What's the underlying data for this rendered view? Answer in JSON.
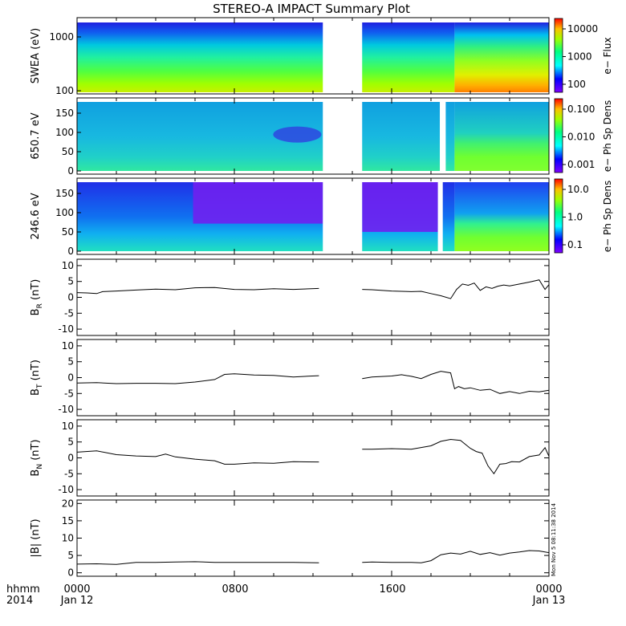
{
  "title": "STEREO-A IMPACT Summary Plot",
  "footer": {
    "left_top": "hhmm",
    "left_bottom": "2014",
    "ticks": [
      {
        "top": "0000",
        "bottom": "Jan 12"
      },
      {
        "top": "0800",
        "bottom": ""
      },
      {
        "top": "1600",
        "bottom": ""
      },
      {
        "top": "0000",
        "bottom": "Jan 13"
      }
    ]
  },
  "timestamp": "Mon Nov  5 08:11:38 2014",
  "colors": {
    "line": "#000000",
    "gap": "#ffffff",
    "colorbar_low": "#7f00ff",
    "colorbar_mid": "#00ff80",
    "colorbar_high": "#ff0000"
  },
  "chart_data": [
    {
      "type": "heatmap",
      "name": "swea",
      "ylabel": "SWEA (eV)",
      "yticks": [
        "1000",
        "100"
      ],
      "colorbar": {
        "label": "e− Flux",
        "ticks": [
          "10000",
          "1000",
          "100"
        ]
      },
      "x_range_hours": [
        0,
        24
      ],
      "data_gaps_hours": [
        [
          12.5,
          14.5
        ]
      ]
    },
    {
      "type": "heatmap",
      "name": "pad650",
      "ylabel": "650.7 eV",
      "yticks": [
        "150",
        "100",
        "50",
        "0"
      ],
      "colorbar": {
        "label": "e− Ph Sp Dens",
        "ticks": [
          "0.100",
          "0.010",
          "0.001"
        ]
      },
      "x_range_hours": [
        0,
        24
      ],
      "data_gaps_hours": [
        [
          12.5,
          14.5
        ],
        [
          18.45,
          18.75
        ]
      ]
    },
    {
      "type": "heatmap",
      "name": "pad246",
      "ylabel": "246.6 eV",
      "yticks": [
        "150",
        "100",
        "50",
        "0"
      ],
      "colorbar": {
        "label": "e− Ph Sp Dens",
        "ticks": [
          "10.0",
          "1.0",
          "0.1"
        ]
      },
      "x_range_hours": [
        0,
        24
      ],
      "data_gaps_hours": [
        [
          12.5,
          14.5
        ],
        [
          18.35,
          18.6
        ]
      ]
    },
    {
      "type": "line",
      "name": "br",
      "ylabel": "B_R (nT)",
      "ylim": [
        -12,
        12
      ],
      "yticks": [
        10,
        5,
        0,
        -5,
        -10
      ],
      "x": [
        0,
        0.5,
        1.0,
        1.3,
        2,
        3,
        4,
        5,
        6,
        7,
        8,
        9,
        10,
        11,
        12.3,
        14.5,
        15,
        16,
        17,
        17.5,
        18,
        18.5,
        19,
        19.3,
        19.6,
        19.9,
        20.2,
        20.5,
        20.8,
        21.1,
        21.4,
        21.7,
        22,
        22.5,
        23,
        23.5,
        23.8,
        24
      ],
      "y": [
        1.5,
        1.4,
        1.2,
        1.8,
        2.0,
        2.3,
        2.6,
        2.4,
        3.0,
        3.1,
        2.5,
        2.4,
        2.7,
        2.5,
        2.8,
        2.5,
        2.4,
        2.0,
        1.8,
        1.9,
        1.2,
        0.5,
        -0.4,
        2.5,
        4.2,
        3.8,
        4.5,
        2.2,
        3.3,
        2.8,
        3.5,
        3.9,
        3.6,
        4.2,
        4.8,
        5.5,
        2.5,
        4.0
      ]
    },
    {
      "type": "line",
      "name": "bt",
      "ylabel": "B_T (nT)",
      "ylim": [
        -12,
        12
      ],
      "yticks": [
        10,
        5,
        0,
        -5,
        -10
      ],
      "x": [
        0,
        1,
        2,
        3,
        4,
        5,
        6,
        7,
        7.5,
        8,
        9,
        10,
        11,
        12.3,
        14.5,
        15,
        16,
        16.5,
        17,
        17.5,
        18,
        18.5,
        19,
        19.2,
        19.4,
        19.7,
        20,
        20.5,
        21,
        21.5,
        22,
        22.5,
        23,
        23.5,
        24
      ],
      "y": [
        -1.7,
        -1.6,
        -1.9,
        -1.8,
        -1.8,
        -1.9,
        -1.4,
        -0.6,
        1.0,
        1.2,
        0.8,
        0.7,
        0.2,
        0.6,
        -0.3,
        0.2,
        0.5,
        0.9,
        0.4,
        -0.3,
        1.0,
        2.0,
        1.5,
        -3.5,
        -2.8,
        -3.5,
        -3.2,
        -4.0,
        -3.7,
        -5.0,
        -4.4,
        -5.0,
        -4.3,
        -4.5,
        -4.0
      ]
    },
    {
      "type": "line",
      "name": "bn",
      "ylabel": "B_N (nT)",
      "ylim": [
        -12,
        12
      ],
      "yticks": [
        10,
        5,
        0,
        -5,
        -10
      ],
      "x": [
        0,
        1,
        2,
        3,
        4,
        4.5,
        5,
        6,
        7,
        7.5,
        8,
        9,
        10,
        11,
        12.3,
        14.5,
        15,
        16,
        17,
        18,
        18.5,
        19,
        19.5,
        20,
        20.3,
        20.6,
        20.9,
        21.2,
        21.5,
        21.8,
        22.1,
        22.5,
        23,
        23.5,
        23.8,
        24
      ],
      "y": [
        1.8,
        2.2,
        1.0,
        0.6,
        0.4,
        1.2,
        0.3,
        -0.4,
        -0.9,
        -2.0,
        -2.0,
        -1.6,
        -1.7,
        -1.2,
        -1.3,
        2.7,
        2.7,
        2.9,
        2.7,
        3.8,
        5.2,
        5.8,
        5.5,
        3.0,
        2.0,
        1.5,
        -2.5,
        -5.0,
        -2.0,
        -1.8,
        -1.2,
        -1.3,
        0.4,
        0.9,
        3.2,
        0.5
      ]
    },
    {
      "type": "line",
      "name": "bmag",
      "ylabel": "|B| (nT)",
      "ylim": [
        -1,
        21
      ],
      "yticks": [
        20,
        15,
        10,
        5,
        0
      ],
      "x": [
        0,
        1,
        2,
        3,
        4,
        5,
        6,
        7,
        8,
        9,
        10,
        11,
        12.3,
        14.5,
        15,
        16,
        17,
        17.5,
        18,
        18.5,
        19,
        19.5,
        20,
        20.5,
        21,
        21.5,
        22,
        22.5,
        23,
        23.5,
        24
      ],
      "y": [
        2.5,
        2.6,
        2.4,
        3.0,
        3.0,
        3.1,
        3.2,
        3.0,
        3.0,
        3.0,
        3.0,
        3.0,
        2.9,
        3.0,
        3.1,
        3.0,
        3.0,
        2.9,
        3.5,
        5.2,
        5.7,
        5.4,
        6.2,
        5.3,
        5.8,
        5.1,
        5.7,
        6.0,
        6.4,
        6.3,
        5.8
      ]
    }
  ]
}
